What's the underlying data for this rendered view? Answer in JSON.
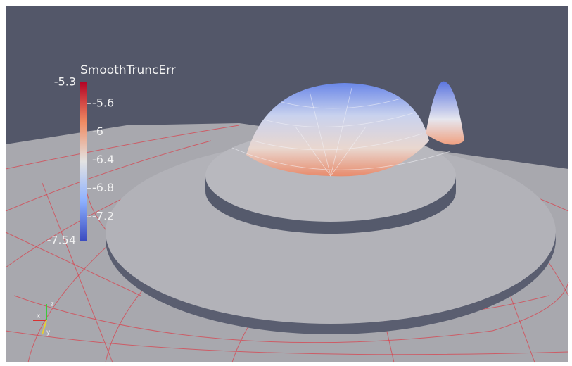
{
  "color_legend": {
    "title": "SmoothTruncErr",
    "max": -5.3,
    "min": -7.54,
    "ticks": [
      -5.6,
      -6,
      -6.4,
      -6.8,
      -7.2
    ]
  },
  "axes_widget": {
    "labels": [
      "x",
      "y",
      "z"
    ]
  }
}
